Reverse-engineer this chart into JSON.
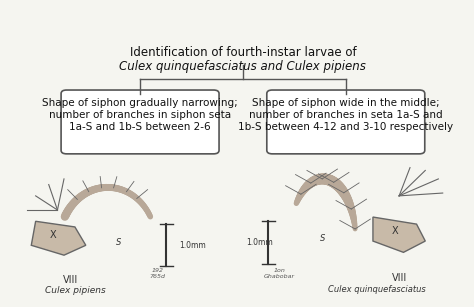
{
  "title_line1": "Identification of fourth-instar larvae of",
  "title_line2_italic": "Culex quinquefasciatus",
  "title_line2_text": " and ",
  "title_line2_italic2": "Culex pipiens",
  "box_left_text": "Shape of siphon gradually narrowing;\nnumber of branches in siphon seta\n1a-S and 1b-S between 2-6",
  "box_right_text": "Shape of siphon wide in the middle;\nnumber of branches in seta 1a-S and\n1b-S between 4-12 and 3-10 respectively",
  "label_left_italic": "Culex pipiens",
  "label_right_italic": "Culex quinquefasciatus",
  "label_viii_left": "VIII",
  "label_viii_right": "VIII",
  "scale_left": "1.0mm",
  "scale_right": "1.0mm",
  "ref_left": "192\n765d",
  "ref_right": "1on\nGhabobar",
  "bg_color": "#f5f5f0",
  "box_bg": "#ffffff",
  "box_border": "#555555",
  "text_color": "#111111",
  "line_color": "#555555",
  "fig_width": 4.74,
  "fig_height": 3.07,
  "dpi": 100
}
